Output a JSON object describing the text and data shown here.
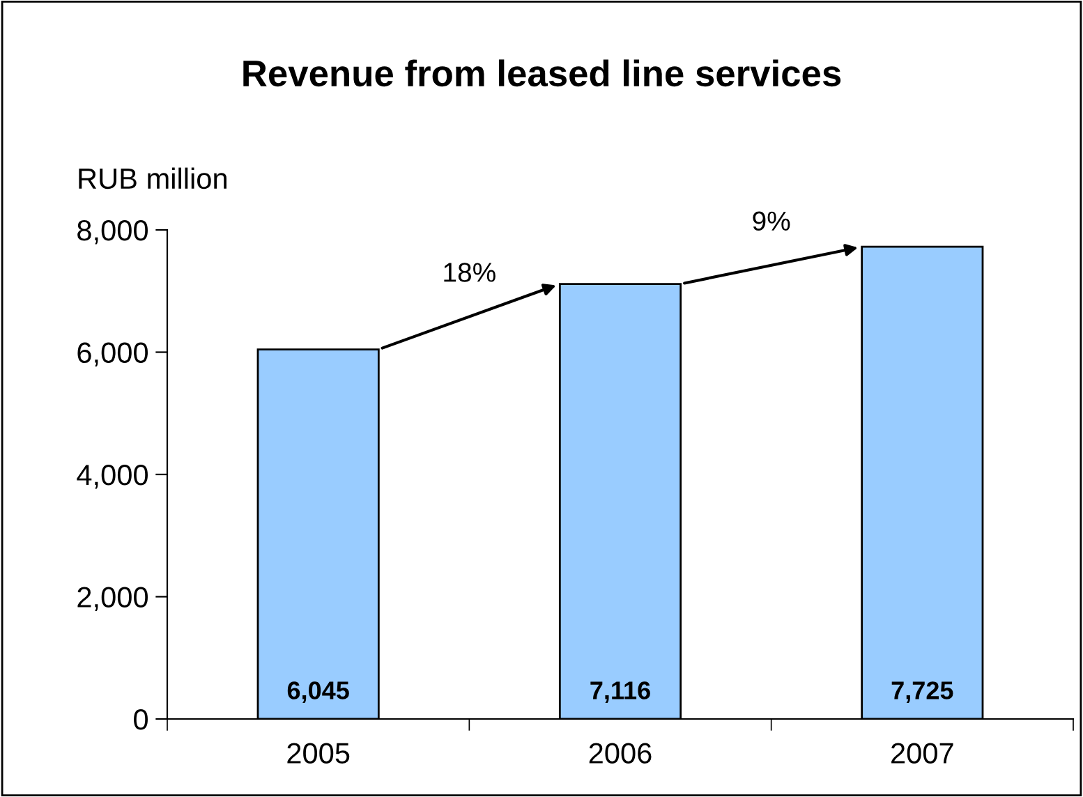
{
  "chart_data": {
    "type": "bar",
    "title": "Revenue from leased line services",
    "ylabel": "RUB million",
    "categories": [
      "2005",
      "2006",
      "2007"
    ],
    "values": [
      6045,
      7116,
      7725
    ],
    "color": "#99ccff",
    "value_labels": [
      "6,045",
      "7,116",
      "7,725"
    ],
    "ylim": [
      0,
      8000
    ],
    "yticks": [
      {
        "value": 0,
        "label": "0"
      },
      {
        "value": 2000,
        "label": "2,000"
      },
      {
        "value": 4000,
        "label": "4,000"
      },
      {
        "value": 6000,
        "label": "6,000"
      },
      {
        "value": 8000,
        "label": "8,000"
      }
    ],
    "annotations": [
      "18%",
      "9%"
    ],
    "grid": false,
    "legend": false
  }
}
